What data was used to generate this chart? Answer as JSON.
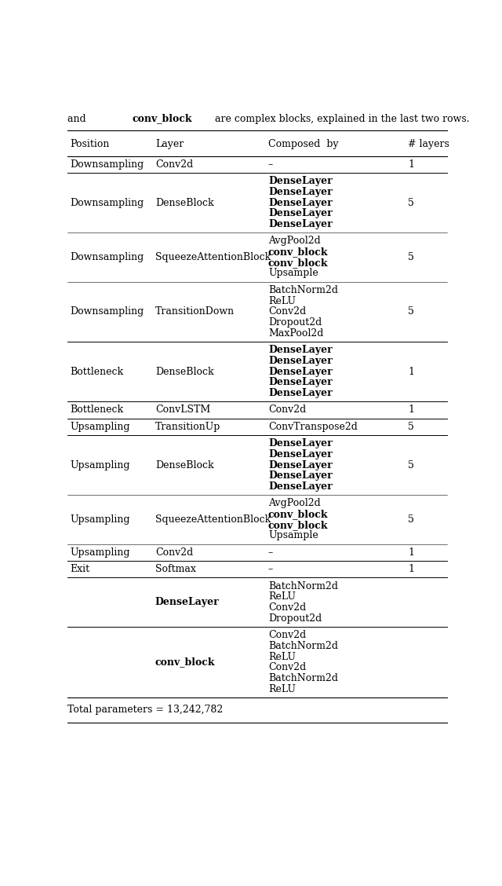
{
  "header_prefix": "and ",
  "header_bold": "conv_block",
  "header_suffix": " are complex blocks, explained in the last two rows.",
  "columns": [
    "Position",
    "Layer",
    "Composed  by",
    "# layers"
  ],
  "footer": "Total parameters = 13,242,782",
  "rows": [
    {
      "position": "Downsampling",
      "layer": "Conv2d",
      "layer_bold": false,
      "composed": [
        [
          "–",
          false
        ]
      ],
      "n_layers": "1"
    },
    {
      "position": "Downsampling",
      "layer": "DenseBlock",
      "layer_bold": false,
      "composed": [
        [
          "DenseLayer",
          true
        ],
        [
          "DenseLayer",
          true
        ],
        [
          "DenseLayer",
          true
        ],
        [
          "DenseLayer",
          true
        ],
        [
          "DenseLayer",
          true
        ]
      ],
      "n_layers": "5"
    },
    {
      "position": "Downsampling",
      "layer": "SqueezeAttentionBlock",
      "layer_bold": false,
      "composed": [
        [
          "AvgPool2d",
          false
        ],
        [
          "conv_block",
          true
        ],
        [
          "conv_block",
          true
        ],
        [
          "Upsample",
          false
        ]
      ],
      "n_layers": "5"
    },
    {
      "position": "Downsampling",
      "layer": "TransitionDown",
      "layer_bold": false,
      "composed": [
        [
          "BatchNorm2d",
          false
        ],
        [
          "ReLU",
          false
        ],
        [
          "Conv2d",
          false
        ],
        [
          "Dropout2d",
          false
        ],
        [
          "MaxPool2d",
          false
        ]
      ],
      "n_layers": "5"
    },
    {
      "position": "Bottleneck",
      "layer": "DenseBlock",
      "layer_bold": false,
      "composed": [
        [
          "DenseLayer",
          true
        ],
        [
          "DenseLayer",
          true
        ],
        [
          "DenseLayer",
          true
        ],
        [
          "DenseLayer",
          true
        ],
        [
          "DenseLayer",
          true
        ]
      ],
      "n_layers": "1"
    },
    {
      "position": "Bottleneck",
      "layer": "ConvLSTM",
      "layer_bold": false,
      "composed": [
        [
          "Conv2d",
          false
        ]
      ],
      "n_layers": "1"
    },
    {
      "position": "Upsampling",
      "layer": "TransitionUp",
      "layer_bold": false,
      "composed": [
        [
          "ConvTranspose2d",
          false
        ]
      ],
      "n_layers": "5"
    },
    {
      "position": "Upsampling",
      "layer": "DenseBlock",
      "layer_bold": false,
      "composed": [
        [
          "DenseLayer",
          true
        ],
        [
          "DenseLayer",
          true
        ],
        [
          "DenseLayer",
          true
        ],
        [
          "DenseLayer",
          true
        ],
        [
          "DenseLayer",
          true
        ]
      ],
      "n_layers": "5"
    },
    {
      "position": "Upsampling",
      "layer": "SqueezeAttentionBlock",
      "layer_bold": false,
      "composed": [
        [
          "AvgPool2d",
          false
        ],
        [
          "conv_block",
          true
        ],
        [
          "conv_block",
          true
        ],
        [
          "Upsample",
          false
        ]
      ],
      "n_layers": "5"
    },
    {
      "position": "Upsampling",
      "layer": "Conv2d",
      "layer_bold": false,
      "composed": [
        [
          "–",
          false
        ]
      ],
      "n_layers": "1"
    },
    {
      "position": "Exit",
      "layer": "Softmax",
      "layer_bold": false,
      "composed": [
        [
          "–",
          false
        ]
      ],
      "n_layers": "1"
    },
    {
      "position": "",
      "layer": "DenseLayer",
      "layer_bold": true,
      "composed": [
        [
          "BatchNorm2d",
          false
        ],
        [
          "ReLU",
          false
        ],
        [
          "Conv2d",
          false
        ],
        [
          "Dropout2d",
          false
        ]
      ],
      "n_layers": ""
    },
    {
      "position": "",
      "layer": "conv_block",
      "layer_bold": true,
      "composed": [
        [
          "Conv2d",
          false
        ],
        [
          "BatchNorm2d",
          false
        ],
        [
          "ReLU",
          false
        ],
        [
          "Conv2d",
          false
        ],
        [
          "BatchNorm2d",
          false
        ],
        [
          "ReLU",
          false
        ]
      ],
      "n_layers": ""
    }
  ]
}
